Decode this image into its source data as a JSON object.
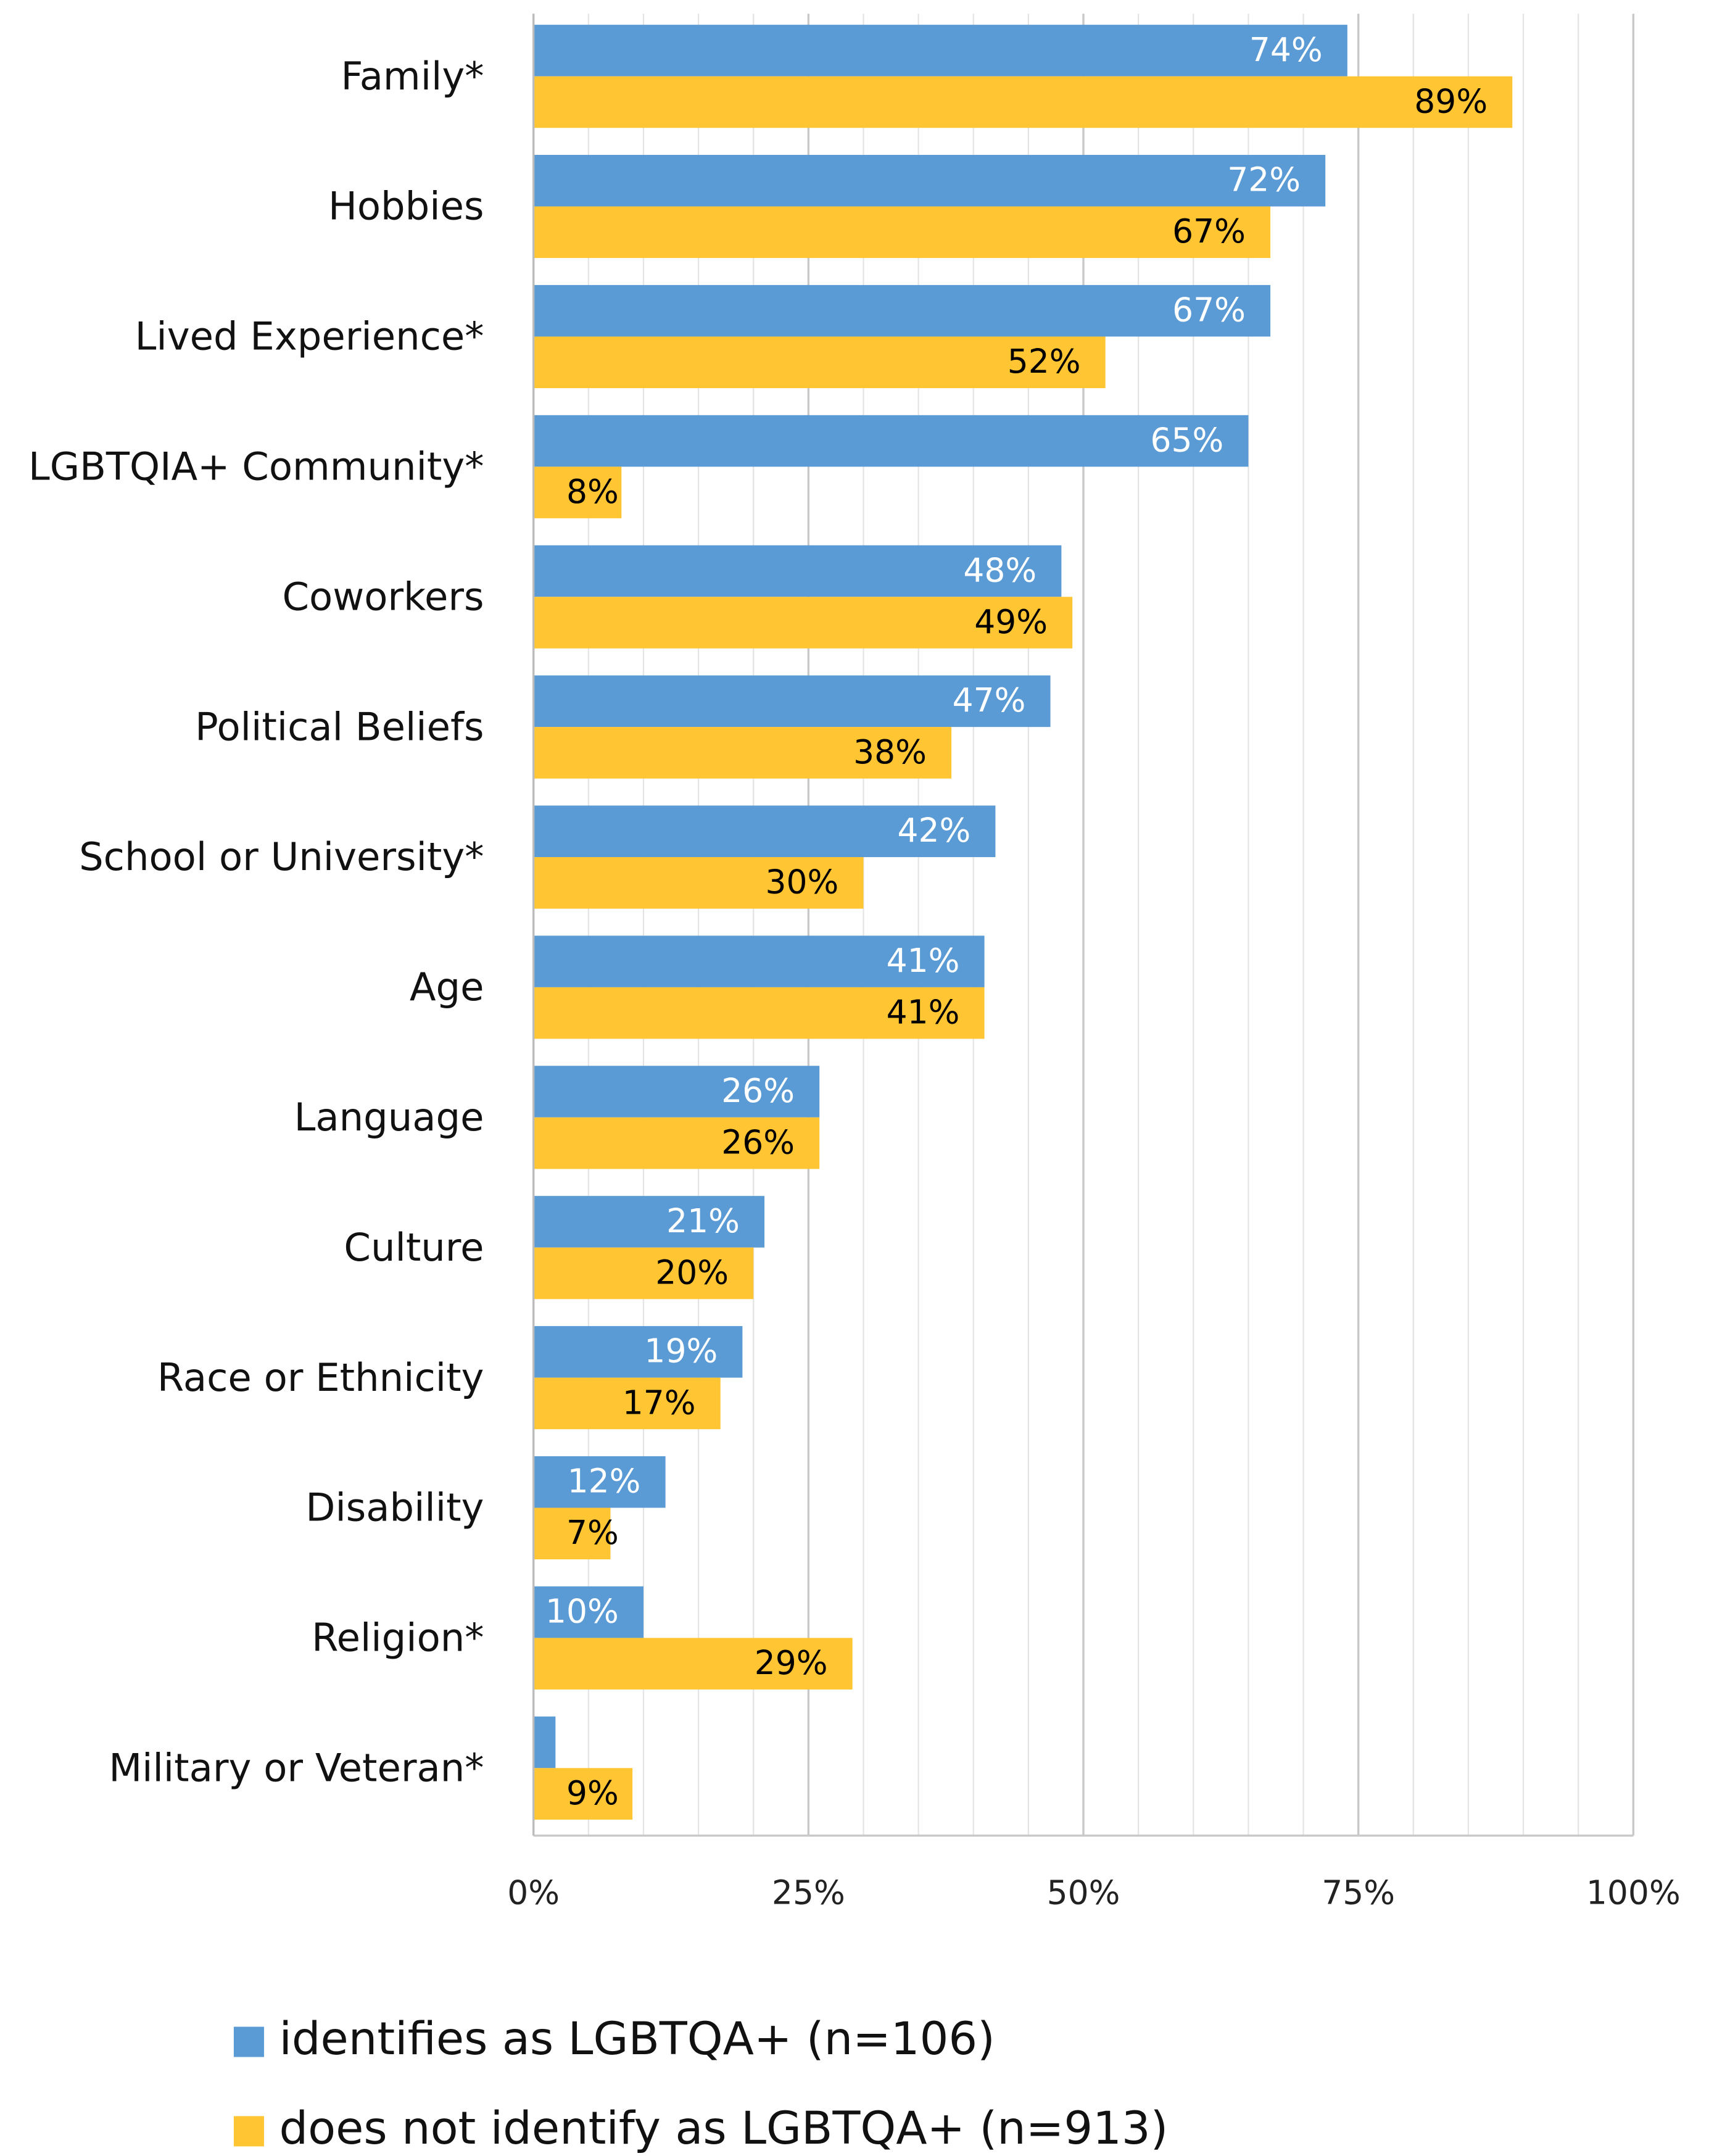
{
  "chart_data": {
    "type": "hbar",
    "categories": [
      "Family*",
      "Hobbies",
      "Lived Experience*",
      "LGBTQIA+ Community*",
      "Coworkers",
      "Political Beliefs",
      "School or University*",
      "Age",
      "Language",
      "Culture",
      "Race or Ethnicity",
      "Disability",
      "Religion*",
      "Military or Veteran*"
    ],
    "series": [
      {
        "name": "identifies as LGBTQA+ (n=106)",
        "color": "#5b9bd5",
        "label_color": "#ffffff",
        "values": [
          74,
          72,
          67,
          65,
          48,
          47,
          42,
          41,
          26,
          21,
          19,
          12,
          10,
          2
        ],
        "value_labels": [
          "74%",
          "72%",
          "67%",
          "65%",
          "48%",
          "47%",
          "42%",
          "41%",
          "26%",
          "21%",
          "19%",
          "12%",
          "10%",
          null
        ]
      },
      {
        "name": "does not identify as LGBTQA+ (n=913)",
        "color": "#ffc532",
        "label_color": "#000000",
        "values": [
          89,
          67,
          52,
          8,
          49,
          38,
          30,
          41,
          26,
          20,
          17,
          7,
          29,
          9
        ],
        "value_labels": [
          "89%",
          "67%",
          "52%",
          "8%",
          "49%",
          "38%",
          "30%",
          "41%",
          "26%",
          "20%",
          "17%",
          "7%",
          "29%",
          "9%"
        ]
      }
    ],
    "xlim": [
      0,
      100
    ],
    "xticks": [
      {
        "value": 0,
        "label": "0%"
      },
      {
        "value": 25,
        "label": "25%"
      },
      {
        "value": 50,
        "label": "50%"
      },
      {
        "value": 75,
        "label": "75%"
      },
      {
        "value": 100,
        "label": "100%"
      }
    ],
    "minor_xticks": [
      5,
      10,
      15,
      20,
      30,
      35,
      40,
      45,
      55,
      60,
      65,
      70,
      80,
      85,
      90,
      95
    ],
    "grid": true,
    "legend": "bottom"
  }
}
